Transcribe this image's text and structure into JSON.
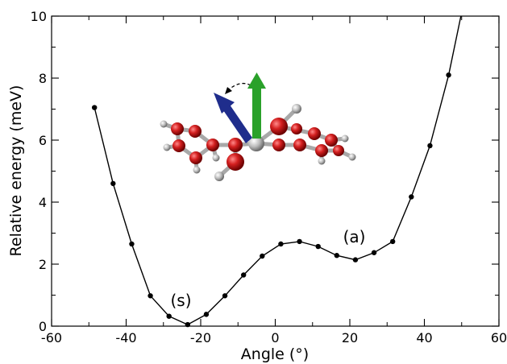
{
  "chart_data": {
    "type": "line",
    "xlabel": "Angle (°)",
    "ylabel": "Relative energy (meV)",
    "xlim": [
      -60,
      60
    ],
    "ylim": [
      0,
      10
    ],
    "x_ticks": [
      "-60",
      "-40",
      "-20",
      "0",
      "20",
      "40",
      "60"
    ],
    "y_ticks": [
      "0",
      "2",
      "4",
      "6",
      "8",
      "10"
    ],
    "grid": false,
    "series": [
      {
        "color": "#000000",
        "points": [
          [
            -48.5,
            7.05
          ],
          [
            -43.5,
            4.6
          ],
          [
            -38.5,
            2.65
          ],
          [
            -33.5,
            0.98
          ],
          [
            -28.5,
            0.32
          ],
          [
            -23.5,
            0.05
          ],
          [
            -18.5,
            0.38
          ],
          [
            -13.5,
            0.98
          ],
          [
            -8.5,
            1.65
          ],
          [
            -3.5,
            2.26
          ],
          [
            1.5,
            2.65
          ],
          [
            6.5,
            2.73
          ],
          [
            11.5,
            2.57
          ],
          [
            16.5,
            2.28
          ],
          [
            21.5,
            2.14
          ],
          [
            26.5,
            2.37
          ],
          [
            31.5,
            2.73
          ],
          [
            36.5,
            4.17
          ],
          [
            41.5,
            5.82
          ],
          [
            46.5,
            8.1
          ]
        ],
        "tail_end": [
          49.8,
          10
        ]
      }
    ],
    "annotations": [
      {
        "text": "(s)",
        "x": -25.3,
        "y": 0.65
      },
      {
        "text": "(a)",
        "x": 21.2,
        "y": 2.7
      }
    ],
    "inset": "molecule-illustration-with-arrows",
    "colors": {
      "atom_red": "#c0161b",
      "atom_gray": "#b8b8b8",
      "arrow_green": "#2aa12a",
      "arrow_blue": "#1f2d8c"
    }
  }
}
